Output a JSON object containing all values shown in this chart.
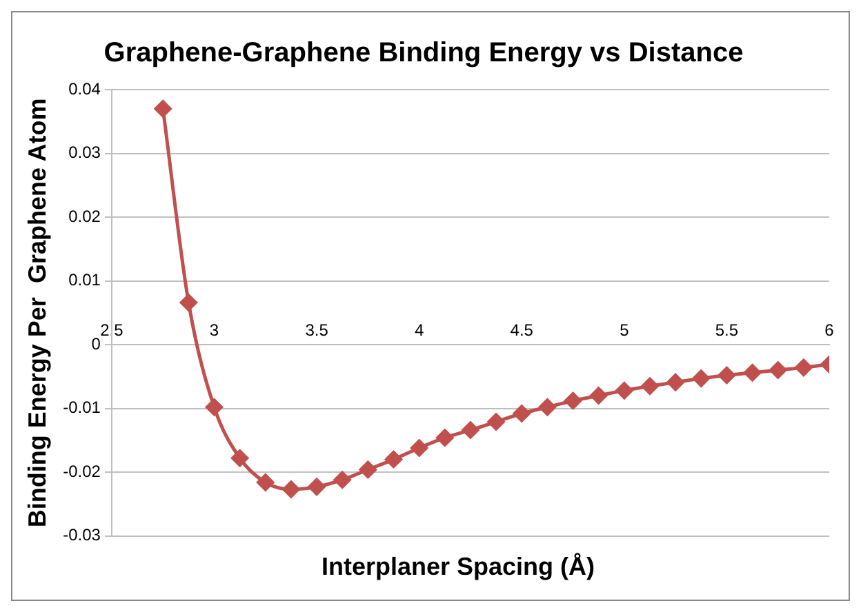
{
  "chart_data": {
    "type": "line",
    "title": "Graphene-Graphene Binding Energy vs Distance",
    "xlabel": "Interplaner Spacing (Å)",
    "ylabel": "Binding Energy Per  Graphene Atom",
    "x": [
      2.75,
      2.875,
      3.0,
      3.125,
      3.25,
      3.375,
      3.5,
      3.625,
      3.75,
      3.875,
      4.0,
      4.125,
      4.25,
      4.375,
      4.5,
      4.625,
      4.75,
      4.875,
      5.0,
      5.125,
      5.25,
      5.375,
      5.5,
      5.625,
      5.75,
      5.875,
      6.0
    ],
    "series": [
      {
        "color": "#c0504d",
        "values": [
          0.037,
          0.0066,
          -0.0098,
          -0.0178,
          -0.0216,
          -0.0227,
          -0.0223,
          -0.0212,
          -0.0196,
          -0.018,
          -0.0162,
          -0.0146,
          -0.0134,
          -0.0121,
          -0.0108,
          -0.0098,
          -0.0088,
          -0.008,
          -0.0072,
          -0.0065,
          -0.0059,
          -0.0053,
          -0.0048,
          -0.0044,
          -0.004,
          -0.0036,
          -0.0031
        ]
      }
    ],
    "xlim": [
      2.5,
      6
    ],
    "xticks": [
      2.5,
      3,
      3.5,
      4,
      4.5,
      5,
      5.5,
      6
    ],
    "ylim": [
      -0.03,
      0.04
    ],
    "yticks": [
      -0.03,
      -0.02,
      -0.01,
      0,
      0.01,
      0.02,
      0.03,
      0.04
    ],
    "grid": "y",
    "marker": "diamond",
    "line_style": "solid",
    "legend": false
  }
}
